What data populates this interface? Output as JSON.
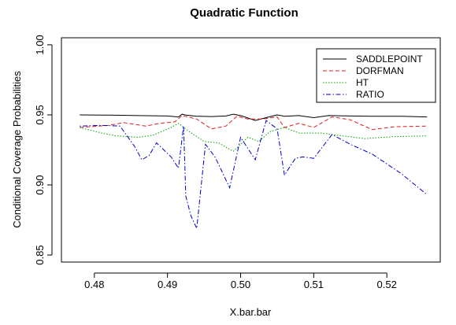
{
  "chart_data": {
    "type": "line",
    "title": "Quadratic Function",
    "xlabel": "X.bar.bar",
    "ylabel": "Conditional Coverage Probabilities",
    "xlim": [
      0.4755,
      0.5273
    ],
    "ylim": [
      0.845,
      1.005
    ],
    "xticks": [
      0.48,
      0.49,
      0.5,
      0.51,
      0.52
    ],
    "xtick_labels": [
      "0.48",
      "0.49",
      "0.50",
      "0.51",
      "0.52"
    ],
    "yticks": [
      0.85,
      0.9,
      0.95,
      1.0
    ],
    "ytick_labels": [
      "0.85",
      "0.90",
      "0.95",
      "1.00"
    ],
    "grid": false,
    "legend_position": "top-right",
    "series": [
      {
        "name": "SADDLEPOINT",
        "color": "#000000",
        "dash": "solid",
        "x": [
          0.478,
          0.482,
          0.486,
          0.49,
          0.4915,
          0.492,
          0.4925,
          0.494,
          0.496,
          0.498,
          0.499,
          0.5,
          0.502,
          0.5035,
          0.505,
          0.506,
          0.508,
          0.51,
          0.512,
          0.515,
          0.518,
          0.522,
          0.5255
        ],
        "y": [
          0.95,
          0.9498,
          0.9495,
          0.9492,
          0.9485,
          0.9505,
          0.9498,
          0.949,
          0.9488,
          0.9492,
          0.9505,
          0.9495,
          0.946,
          0.948,
          0.95,
          0.949,
          0.9495,
          0.948,
          0.9495,
          0.9492,
          0.949,
          0.949,
          0.9485
        ]
      },
      {
        "name": "DORFMAN",
        "color": "#e41a1c",
        "dash": "dashed",
        "x": [
          0.478,
          0.482,
          0.484,
          0.487,
          0.489,
          0.491,
          0.492,
          0.494,
          0.496,
          0.498,
          0.4995,
          0.501,
          0.503,
          0.505,
          0.506,
          0.508,
          0.51,
          0.5125,
          0.515,
          0.518,
          0.521,
          0.5255
        ],
        "y": [
          0.941,
          0.9425,
          0.9445,
          0.942,
          0.944,
          0.945,
          0.9495,
          0.947,
          0.94,
          0.942,
          0.949,
          0.947,
          0.947,
          0.9485,
          0.941,
          0.944,
          0.941,
          0.9485,
          0.9465,
          0.9395,
          0.9415,
          0.942
        ]
      },
      {
        "name": "HT",
        "color": "#00a000",
        "dash": "dotted",
        "x": [
          0.478,
          0.481,
          0.483,
          0.486,
          0.488,
          0.4905,
          0.4915,
          0.492,
          0.493,
          0.495,
          0.497,
          0.499,
          0.501,
          0.5025,
          0.504,
          0.506,
          0.508,
          0.511,
          0.514,
          0.517,
          0.521,
          0.5255
        ],
        "y": [
          0.941,
          0.937,
          0.935,
          0.934,
          0.9355,
          0.941,
          0.944,
          0.942,
          0.938,
          0.931,
          0.93,
          0.924,
          0.934,
          0.931,
          0.938,
          0.941,
          0.937,
          0.937,
          0.935,
          0.933,
          0.9345,
          0.935
        ]
      },
      {
        "name": "RATIO",
        "color": "#0000cc",
        "dash": "dotdash",
        "x": [
          0.478,
          0.481,
          0.4835,
          0.4855,
          0.4865,
          0.4875,
          0.4885,
          0.4905,
          0.4915,
          0.4922,
          0.4925,
          0.4932,
          0.494,
          0.4952,
          0.4965,
          0.4985,
          0.5,
          0.502,
          0.5035,
          0.505,
          0.506,
          0.5075,
          0.5085,
          0.51,
          0.5125,
          0.515,
          0.518,
          0.522,
          0.5255
        ],
        "y": [
          0.942,
          0.9425,
          0.942,
          0.9275,
          0.918,
          0.921,
          0.93,
          0.92,
          0.912,
          0.942,
          0.892,
          0.878,
          0.869,
          0.929,
          0.92,
          0.898,
          0.934,
          0.918,
          0.946,
          0.94,
          0.907,
          0.919,
          0.92,
          0.919,
          0.936,
          0.929,
          0.922,
          0.908,
          0.893
        ]
      }
    ]
  }
}
